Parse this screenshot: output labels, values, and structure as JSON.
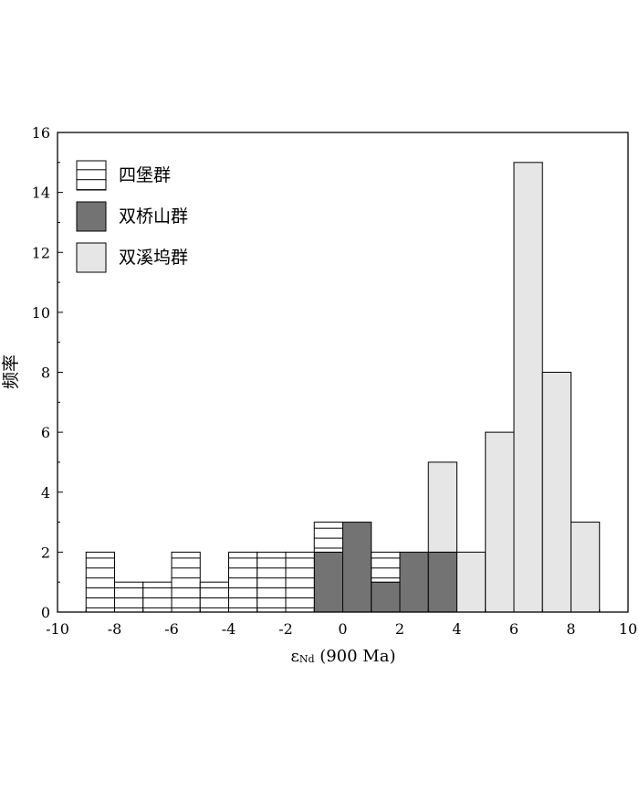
{
  "chart_data": {
    "type": "bar",
    "stacked": true,
    "bin_width": 1,
    "ylabel": "频率",
    "xlabel_main": "ε",
    "xlabel_sub": "Nd",
    "xlabel_rest": " (900 Ma)",
    "xlim": [
      -10,
      10
    ],
    "ylim": [
      0,
      16
    ],
    "xticks": [
      -10,
      -8,
      -6,
      -4,
      -2,
      0,
      2,
      4,
      6,
      8,
      10
    ],
    "yticks": [
      0,
      2,
      4,
      6,
      8,
      10,
      12,
      14,
      16
    ],
    "legend_position": "top-left",
    "series": [
      {
        "name": "四堡群",
        "style": "hatched",
        "color": "#ffffff",
        "bins": [
          {
            "x0": -9,
            "x1": -8,
            "value": 2
          },
          {
            "x0": -8,
            "x1": -7,
            "value": 1
          },
          {
            "x0": -7,
            "x1": -6,
            "value": 1
          },
          {
            "x0": -6,
            "x1": -5,
            "value": 2
          },
          {
            "x0": -5,
            "x1": -4,
            "value": 1
          },
          {
            "x0": -4,
            "x1": -3,
            "value": 2
          },
          {
            "x0": -3,
            "x1": -2,
            "value": 2
          },
          {
            "x0": -2,
            "x1": -1,
            "value": 2
          },
          {
            "x0": -1,
            "x1": 0,
            "value": 1
          },
          {
            "x0": 1,
            "x1": 2,
            "value": 1
          }
        ]
      },
      {
        "name": "双桥山群",
        "style": "solid",
        "color": "#737373",
        "bins": [
          {
            "x0": -1,
            "x1": 0,
            "value": 2
          },
          {
            "x0": 0,
            "x1": 1,
            "value": 3
          },
          {
            "x0": 1,
            "x1": 2,
            "value": 1
          },
          {
            "x0": 2,
            "x1": 3,
            "value": 2
          },
          {
            "x0": 3,
            "x1": 4,
            "value": 2
          }
        ]
      },
      {
        "name": "双溪坞群",
        "style": "solid",
        "color": "#e6e6e6",
        "bins": [
          {
            "x0": 3,
            "x1": 4,
            "value": 3
          },
          {
            "x0": 4,
            "x1": 5,
            "value": 2
          },
          {
            "x0": 5,
            "x1": 6,
            "value": 6
          },
          {
            "x0": 6,
            "x1": 7,
            "value": 15
          },
          {
            "x0": 7,
            "x1": 8,
            "value": 8
          },
          {
            "x0": 8,
            "x1": 9,
            "value": 3
          }
        ]
      }
    ]
  }
}
